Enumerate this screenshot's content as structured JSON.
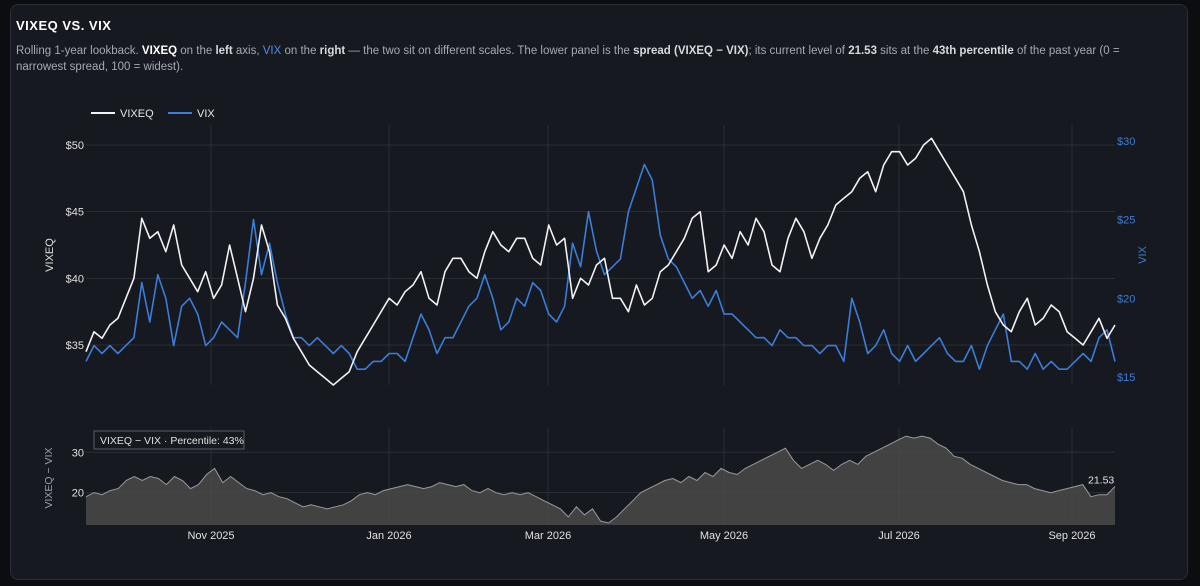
{
  "card": {
    "title": "VIXEQ VS. VIX",
    "desc": {
      "t1": "Rolling 1-year lookback. ",
      "vixeq": "VIXEQ",
      "t2": " on the ",
      "left": "left",
      "t3": " axis, ",
      "vix": "VIX",
      "t4": " on the ",
      "right": "right",
      "t5": " — the two sit on different scales. The lower panel is the ",
      "spread": "spread (VIXEQ − VIX)",
      "t6": "; its current level of ",
      "level": "21.53",
      "t7": " sits at the ",
      "pct": "43th percentile",
      "t8": " of the past year (0 = narrowest spread, 100 = widest)."
    }
  },
  "colors": {
    "vixeq": "#f2f2f2",
    "vix": "#3b7dd8",
    "spread": "#9a9a9a",
    "spread_fill": "#4a4a4a"
  },
  "chart_data": [
    {
      "type": "line",
      "xlabels": [
        "Nov 2025",
        "Jan 2026",
        "Mar 2026",
        "May 2026",
        "Jul 2026",
        "Sep 2026"
      ],
      "series": [
        {
          "name": "VIXEQ",
          "axis": "left",
          "ylabel": "VIXEQ",
          "yticks": [
            "$35",
            "$40",
            "$45",
            "$50"
          ],
          "ylim": [
            32,
            51.5
          ],
          "values": [
            34.5,
            36,
            35.5,
            36.5,
            37,
            38.5,
            40,
            44.5,
            43,
            43.5,
            42,
            44,
            41,
            40,
            39,
            40.5,
            38.5,
            39.5,
            42.5,
            40,
            37.5,
            40,
            44,
            42,
            38,
            37,
            35.5,
            34.5,
            33.5,
            33,
            32.5,
            32,
            32.5,
            33,
            34.5,
            35.5,
            36.5,
            37.5,
            38.5,
            38,
            39,
            39.5,
            40.5,
            38.5,
            38,
            40.5,
            41.5,
            41.5,
            40.5,
            40,
            42,
            43.5,
            42.5,
            42,
            43,
            43,
            41.5,
            41,
            44,
            42.5,
            43,
            38.5,
            40,
            39.5,
            41,
            41.5,
            38.5,
            38.5,
            37.5,
            39.5,
            38,
            38.5,
            40.5,
            41,
            42,
            43,
            44.5,
            45,
            40.5,
            41,
            42.5,
            41.5,
            43.5,
            42.5,
            44.5,
            43.5,
            41,
            40.5,
            43,
            44.5,
            43.5,
            41.5,
            43,
            44,
            45.5,
            46,
            46.5,
            47.5,
            48,
            46.5,
            48.5,
            49.5,
            49.5,
            48.5,
            49,
            50,
            50.5,
            49.5,
            48.5,
            47.5,
            46.5,
            44,
            42,
            39.5,
            37.5,
            36.5,
            36,
            37.5,
            38.5,
            36.5,
            37,
            38,
            37.5,
            36,
            35.5,
            35,
            36,
            37,
            35.5,
            36.5
          ]
        },
        {
          "name": "VIX",
          "axis": "right",
          "ylabel": "VIX",
          "yticks": [
            "$15",
            "$20",
            "$25",
            "$30"
          ],
          "ylim": [
            14.5,
            31
          ],
          "values": [
            16,
            17,
            16.5,
            17,
            16.5,
            17,
            17.5,
            21,
            18.5,
            21.5,
            20,
            17,
            19.5,
            20,
            19,
            17,
            17.5,
            18.5,
            18,
            17.5,
            21,
            25,
            21.5,
            23.5,
            21,
            19,
            17.5,
            17.5,
            17,
            17.5,
            17,
            16.5,
            17,
            16.5,
            15.5,
            15.5,
            16,
            16,
            16.5,
            16.5,
            16,
            17.5,
            19,
            18,
            16.5,
            17.5,
            17.5,
            18.5,
            19.5,
            20,
            21.5,
            20,
            18,
            18.5,
            20,
            19.5,
            21,
            20.5,
            19,
            18.5,
            19.5,
            23.5,
            22,
            25.5,
            23,
            21.5,
            22,
            22.5,
            25.5,
            27,
            28.5,
            27.5,
            24,
            22.5,
            22,
            21,
            20,
            20.5,
            19.5,
            20.5,
            19,
            19,
            18.5,
            18,
            17.5,
            17.5,
            17,
            18,
            17.5,
            17.5,
            17,
            17,
            16.5,
            17,
            17,
            16,
            20,
            18.5,
            16.5,
            17,
            18,
            16.5,
            16,
            17,
            16,
            16.5,
            17,
            17.5,
            16.5,
            16,
            16,
            17,
            15.5,
            17,
            18,
            19,
            16,
            16,
            15.5,
            16.5,
            15.5,
            16,
            15.5,
            15.5,
            16,
            16.5,
            16,
            17.5,
            18,
            16
          ]
        }
      ]
    },
    {
      "type": "area",
      "name": "VIXEQ − VIX",
      "ylabel": "VIXEQ − VIX",
      "yticks": [
        "20",
        "30"
      ],
      "ylim": [
        12,
        36
      ],
      "annotation": "VIXEQ − VIX · Percentile: 43%",
      "last_label": "21.53",
      "values": [
        19,
        20,
        19.5,
        20.5,
        21,
        23,
        24,
        23,
        24,
        23.5,
        22,
        24,
        23,
        21,
        22,
        24.5,
        26,
        22.5,
        24,
        22.5,
        21,
        20.5,
        19.5,
        20,
        19,
        18.5,
        17.5,
        16.5,
        17,
        16.5,
        16,
        16.5,
        17,
        18,
        19.5,
        20,
        19.5,
        20.5,
        21,
        21.5,
        22,
        21.5,
        21,
        21.5,
        22.5,
        22,
        21.5,
        22,
        20.5,
        20,
        21,
        20,
        19.5,
        20,
        19.5,
        20,
        19,
        18,
        17,
        16,
        14,
        16.5,
        14.5,
        16,
        13,
        12.5,
        14,
        16,
        18,
        20,
        21,
        22,
        23,
        23.5,
        22.5,
        24,
        23,
        25,
        24,
        26,
        25,
        24.5,
        26,
        27,
        28,
        29,
        30,
        31,
        28,
        26,
        27,
        28,
        27,
        25.5,
        27,
        28,
        27,
        29,
        30,
        31,
        32,
        33,
        34,
        33.5,
        34,
        33.5,
        32,
        31,
        29,
        28.5,
        27,
        26,
        25,
        24,
        23,
        22.5,
        22,
        22,
        21,
        20.5,
        20,
        20.5,
        21,
        21.5,
        22,
        19,
        19.5,
        19.5,
        21.53
      ]
    }
  ],
  "legend": {
    "vixeq": "VIXEQ",
    "vix": "VIX"
  }
}
